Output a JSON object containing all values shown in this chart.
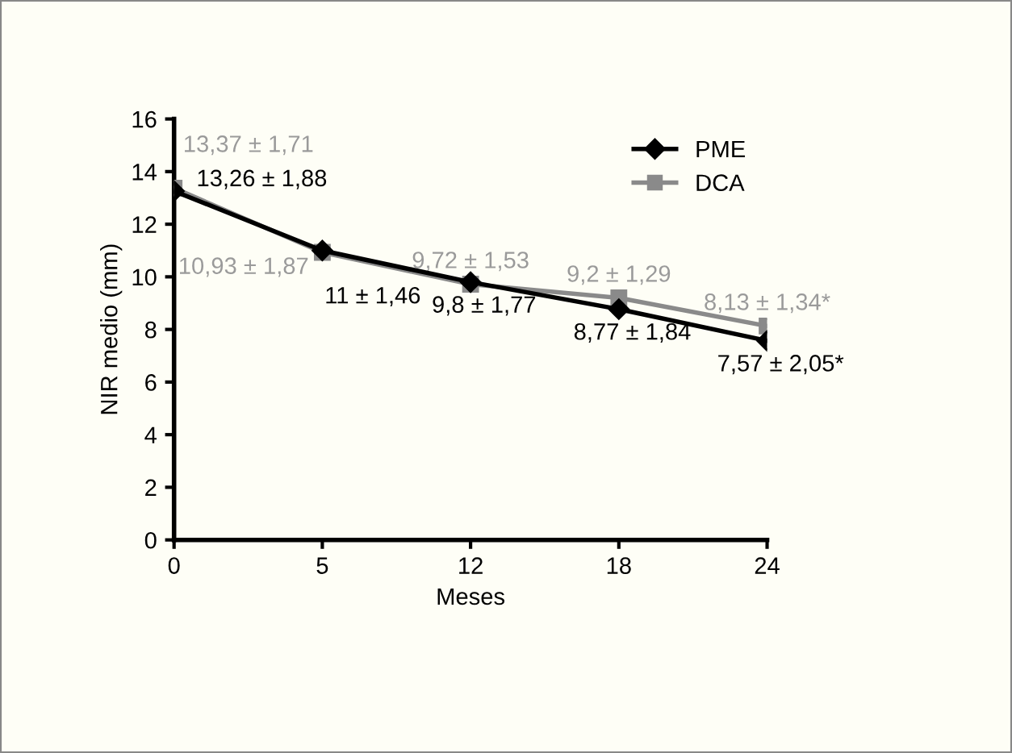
{
  "chart_data": {
    "type": "line",
    "xlabel": "Meses",
    "ylabel": "NIR medio (mm)",
    "categories": [
      "0",
      "5",
      "12",
      "18",
      "24"
    ],
    "series": [
      {
        "name": "PME",
        "color": "#000000",
        "marker": "diamond",
        "values": [
          13.26,
          11,
          9.8,
          8.77,
          7.57
        ],
        "value_labels": [
          "13,26 ± 1,88",
          "11 ± 1,46",
          "9,8 ± 1,77",
          "8,77 ± 1,84",
          "7,57 ± 2,05*"
        ]
      },
      {
        "name": "DCA",
        "color": "#8a8a8a",
        "marker": "square",
        "values": [
          13.37,
          10.93,
          9.72,
          9.2,
          8.13
        ],
        "value_labels": [
          "13,37 ± 1,71",
          "10,93 ± 1,87",
          "9,72 ± 1,53",
          "9,2 ± 1,29",
          "8,13 ± 1,34*"
        ]
      }
    ],
    "ylim": [
      0,
      16
    ],
    "yticks": [
      0,
      2,
      4,
      6,
      8,
      10,
      12,
      14,
      16
    ],
    "grid": false,
    "legend": "top right",
    "line_style": "solid"
  }
}
